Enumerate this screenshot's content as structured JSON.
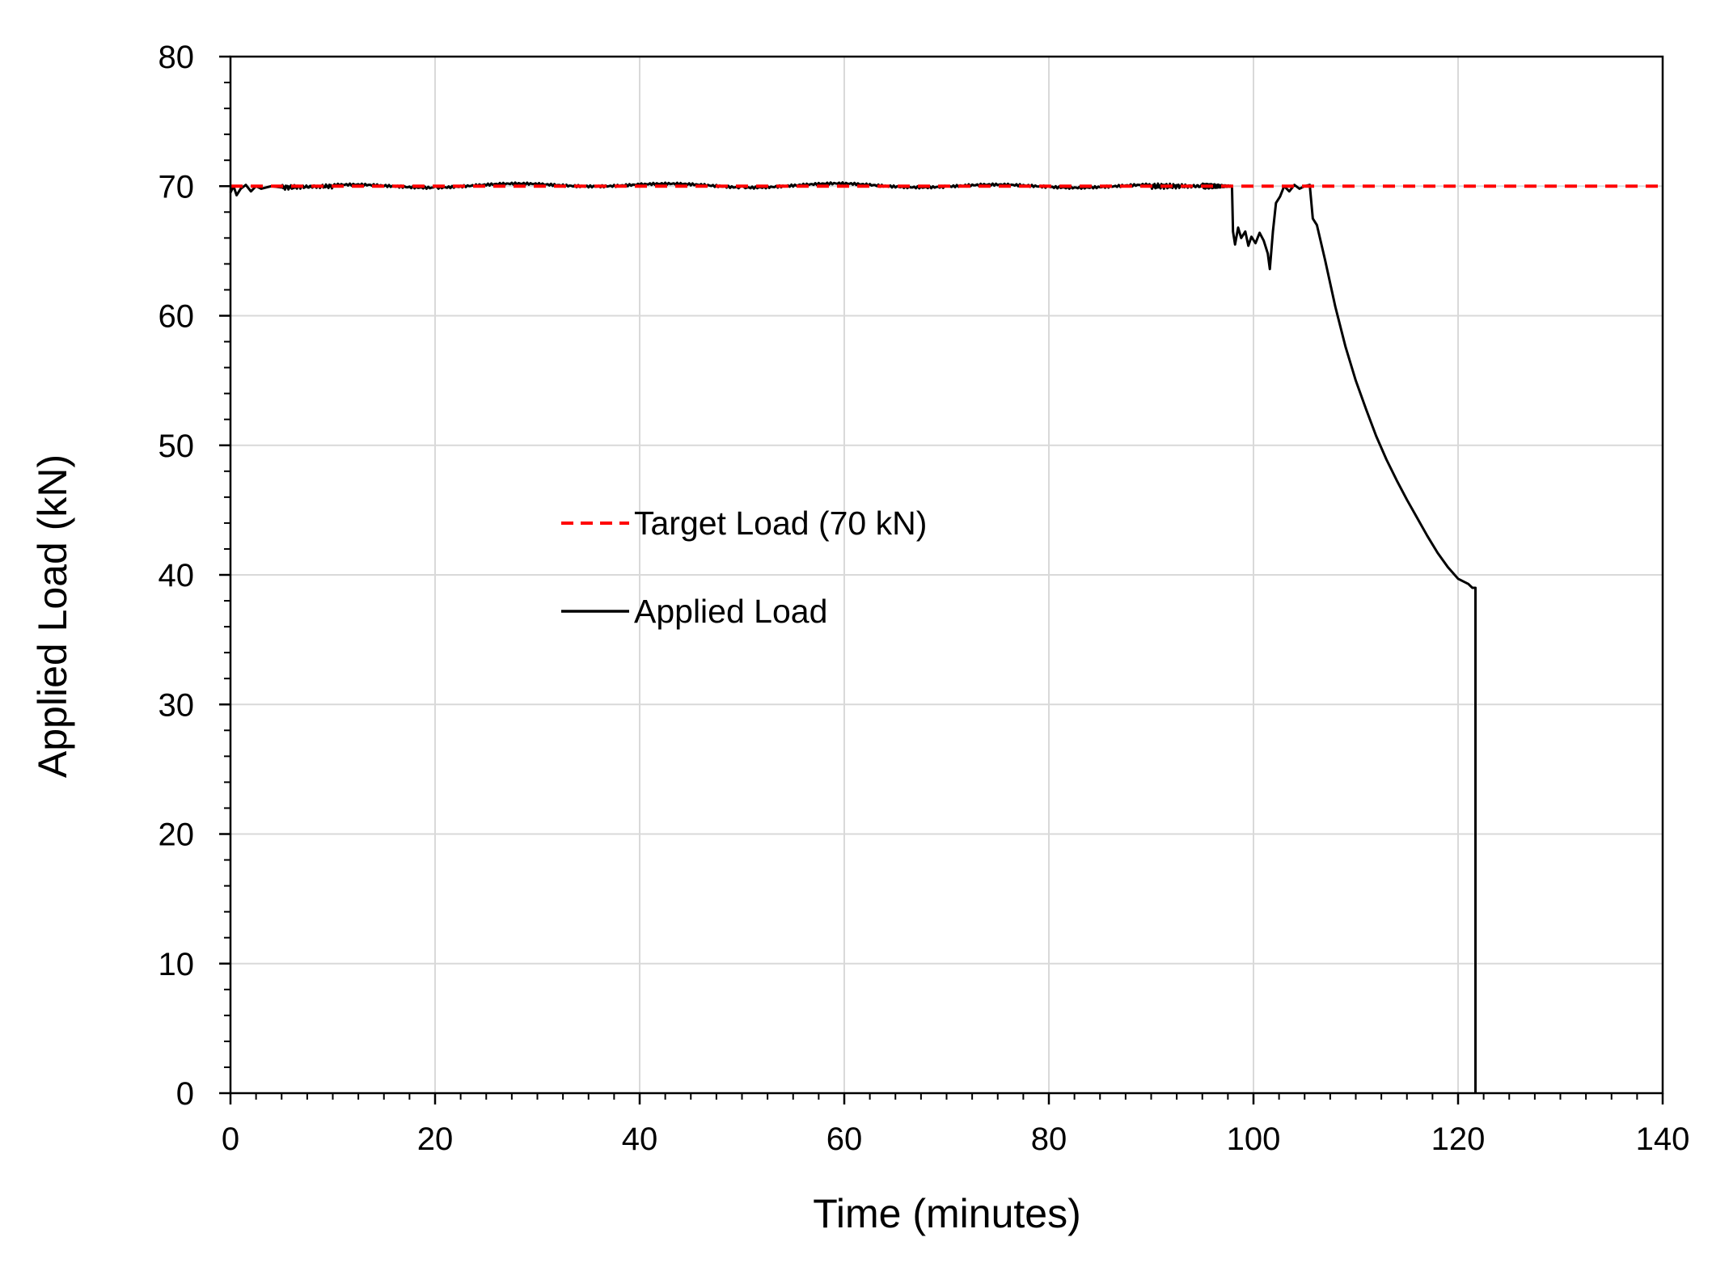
{
  "chart_data": {
    "type": "line",
    "xlabel": "Time (minutes)",
    "ylabel": "Applied Load (kN)",
    "xlim": [
      0,
      140
    ],
    "ylim": [
      0,
      80
    ],
    "x_ticks": [
      "0",
      "20",
      "40",
      "60",
      "80",
      "100",
      "120",
      "140"
    ],
    "y_ticks": [
      "0",
      "10",
      "20",
      "30",
      "40",
      "50",
      "60",
      "70",
      "80"
    ],
    "grid": true,
    "legend_position": "center-left",
    "series": [
      {
        "name": "Target Load (70 kN)",
        "style": "dashed",
        "color": "#ff0000",
        "x": [
          0,
          140
        ],
        "y": [
          70,
          70
        ]
      },
      {
        "name": "Applied Load",
        "style": "solid",
        "color": "#000000",
        "x": [
          0,
          0.3,
          0.6,
          1,
          1.5,
          2,
          2.5,
          3,
          4,
          5,
          10,
          20,
          30,
          40,
          50,
          60,
          70,
          80,
          90,
          95,
          97.9,
          98.0,
          98.2,
          98.5,
          98.8,
          99.2,
          99.5,
          99.8,
          100.2,
          100.6,
          101.0,
          101.4,
          101.6,
          101.9,
          102.2,
          102.6,
          103.0,
          103.5,
          104.0,
          104.5,
          105.0,
          105.5,
          105.8,
          106.2,
          107,
          108,
          109,
          110,
          111,
          112,
          113,
          114,
          115,
          116,
          117,
          118,
          119,
          120,
          121,
          121.4,
          121.7,
          121.7
        ],
        "y": [
          69.5,
          70,
          69.3,
          69.8,
          70.1,
          69.6,
          70.0,
          69.8,
          70.0,
          69.9,
          70.0,
          70.0,
          70.1,
          70.1,
          70.0,
          70.1,
          70.0,
          70.0,
          70.0,
          70.0,
          70.0,
          66.5,
          65.5,
          66.8,
          66.0,
          66.5,
          65.4,
          66.1,
          65.6,
          66.4,
          65.8,
          64.8,
          63.6,
          66.5,
          68.7,
          69.2,
          70.0,
          69.6,
          70.1,
          69.8,
          70.0,
          70.1,
          67.5,
          67.0,
          64.3,
          60.7,
          57.6,
          55.0,
          52.8,
          50.7,
          48.9,
          47.3,
          45.8,
          44.4,
          43.0,
          41.7,
          40.6,
          39.7,
          39.3,
          39.0,
          39.0,
          0
        ]
      }
    ]
  }
}
